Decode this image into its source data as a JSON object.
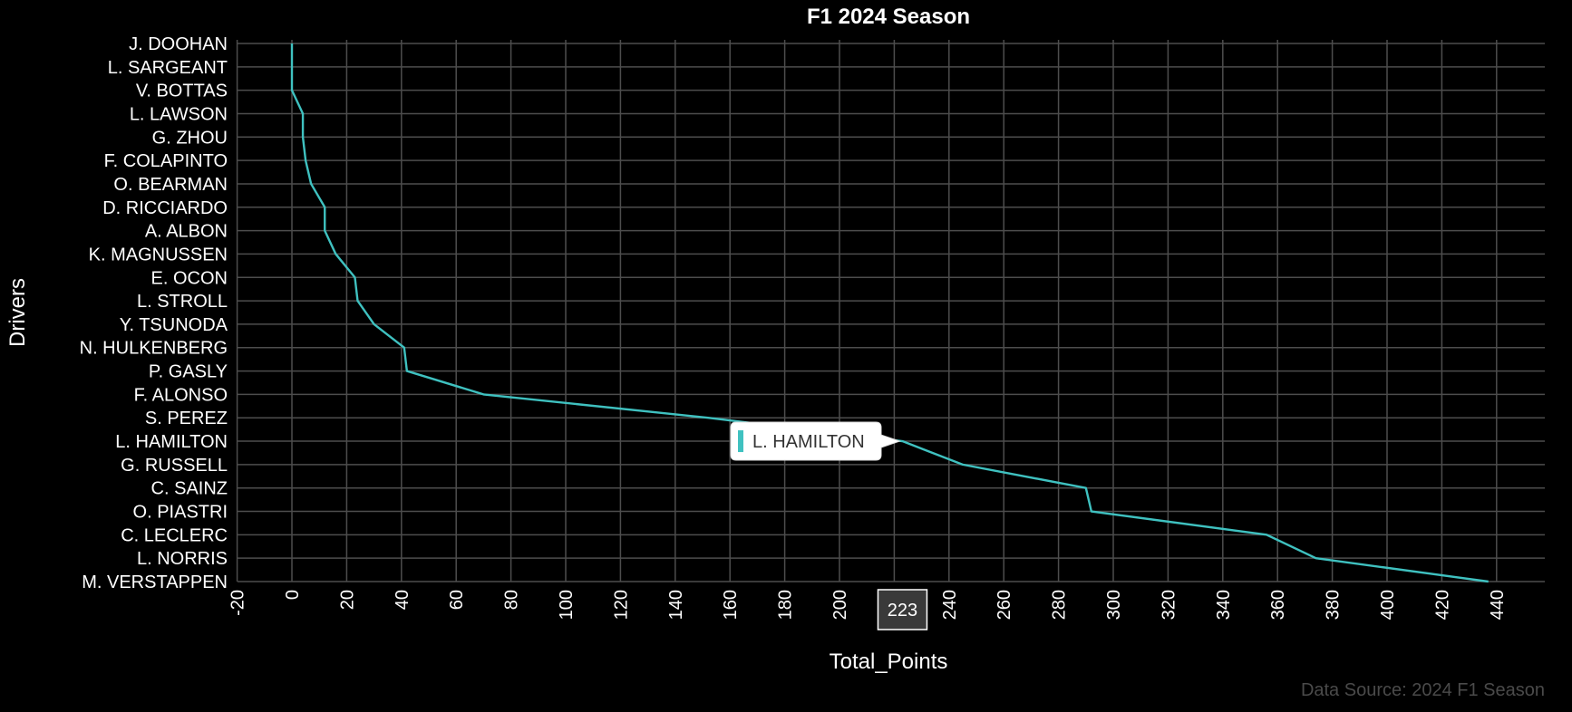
{
  "chart_data": {
    "type": "line",
    "title": "F1 2024 Season",
    "xlabel": "Total_Points",
    "ylabel": "Drivers",
    "xlim": [
      -20,
      450
    ],
    "x_ticks": [
      "-20",
      "0",
      "20",
      "40",
      "60",
      "80",
      "100",
      "120",
      "140",
      "160",
      "180",
      "200",
      "220",
      "240",
      "260",
      "280",
      "300",
      "320",
      "340",
      "360",
      "380",
      "400",
      "420",
      "440"
    ],
    "grid": true,
    "line_color": "#3fc1c0",
    "series": [
      {
        "categories": [
          "J. DOOHAN",
          "L. SARGEANT",
          "V. BOTTAS",
          "L. LAWSON",
          "G. ZHOU",
          "F. COLAPINTO",
          "O. BEARMAN",
          "D. RICCIARDO",
          "A. ALBON",
          "K. MAGNUSSEN",
          "E. OCON",
          "L. STROLL",
          "Y. TSUNODA",
          "N. HULKENBERG",
          "P. GASLY",
          "F. ALONSO",
          "S. PEREZ",
          "L. HAMILTON",
          "G. RUSSELL",
          "C. SAINZ",
          "O. PIASTRI",
          "C. LECLERC",
          "L. NORRIS",
          "M. VERSTAPPEN"
        ],
        "values": [
          0,
          0,
          0,
          4,
          4,
          5,
          7,
          12,
          12,
          16,
          23,
          24,
          30,
          41,
          42,
          70,
          152,
          223,
          245,
          290,
          292,
          356,
          374,
          437
        ]
      }
    ],
    "tooltip": {
      "label": "L. HAMILTON"
    },
    "crosshair_value": "223",
    "source": "Data Source: 2024 F1 Season"
  }
}
